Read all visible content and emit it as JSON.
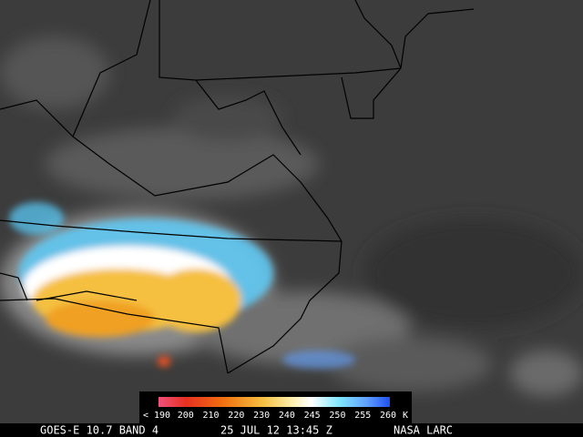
{
  "colorbar": {
    "labels": [
      "< 190",
      "200",
      "210",
      "220",
      "230",
      "240",
      "245",
      "250",
      "255",
      "260"
    ],
    "unit": "K"
  },
  "footer": {
    "satellite": "GOES-E 10.7 BAND 4",
    "datetime": "25 JUL 12 13:45 Z",
    "source": "NASA LARC"
  }
}
